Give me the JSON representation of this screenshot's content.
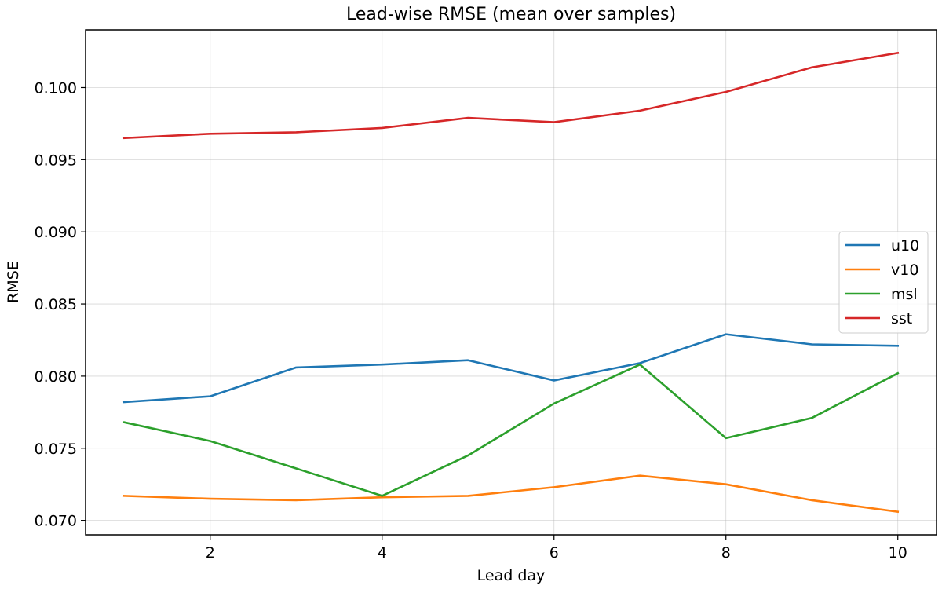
{
  "chart_data": {
    "type": "line",
    "title": "Lead-wise RMSE (mean over samples)",
    "xlabel": "Lead day",
    "ylabel": "RMSE",
    "x": [
      1,
      2,
      3,
      4,
      5,
      6,
      7,
      8,
      9,
      10
    ],
    "xlim": [
      0.55,
      10.45
    ],
    "ylim": [
      0.069,
      0.104
    ],
    "xticks": [
      2,
      4,
      6,
      8,
      10
    ],
    "xtick_labels": [
      "2",
      "4",
      "6",
      "8",
      "10"
    ],
    "yticks": [
      0.07,
      0.075,
      0.08,
      0.085,
      0.09,
      0.095,
      0.1
    ],
    "ytick_labels": [
      "0.070",
      "0.075",
      "0.080",
      "0.085",
      "0.090",
      "0.095",
      "0.100"
    ],
    "grid": true,
    "legend_position": "center-right",
    "series": [
      {
        "name": "u10",
        "color": "#1f77b4",
        "values": [
          0.0782,
          0.0786,
          0.0806,
          0.0808,
          0.0811,
          0.0797,
          0.0809,
          0.0829,
          0.0822,
          0.0821
        ]
      },
      {
        "name": "v10",
        "color": "#ff7f0e",
        "values": [
          0.0717,
          0.0715,
          0.0714,
          0.0716,
          0.0717,
          0.0723,
          0.0731,
          0.0725,
          0.0714,
          0.0706
        ]
      },
      {
        "name": "msl",
        "color": "#2ca02c",
        "values": [
          0.0768,
          0.0755,
          0.0736,
          0.0717,
          0.0745,
          0.0781,
          0.0808,
          0.0757,
          0.0771,
          0.0802
        ]
      },
      {
        "name": "sst",
        "color": "#d62728",
        "values": [
          0.0965,
          0.0968,
          0.0969,
          0.0972,
          0.0979,
          0.0976,
          0.0984,
          0.0997,
          0.1014,
          0.1024
        ]
      }
    ]
  }
}
